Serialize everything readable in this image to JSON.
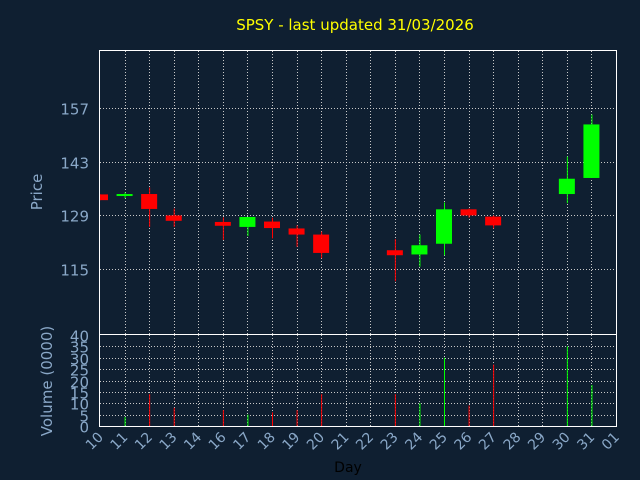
{
  "chart_data": {
    "type": "candlestick",
    "title": "SPSY - last updated 31/03/2026",
    "xlabel": "Day",
    "price_panel": {
      "ylabel": "Price",
      "ylim": [
        98,
        172
      ],
      "yticks": [
        115,
        129,
        143,
        157
      ],
      "grid": true
    },
    "volume_panel": {
      "ylabel": "Volume (0000)",
      "ylim": [
        0,
        40
      ],
      "yticks": [
        0,
        5,
        10,
        15,
        20,
        25,
        30,
        35,
        40
      ],
      "grid": true
    },
    "x_ticks": [
      "10",
      "11",
      "12",
      "13",
      "14",
      "16",
      "17",
      "18",
      "19",
      "20",
      "21",
      "22",
      "23",
      "24",
      "25",
      "26",
      "27",
      "28",
      "29",
      "30",
      "31",
      "01"
    ],
    "candles": [
      {
        "day": "10",
        "open": 134.5,
        "high": 134.5,
        "low": 133.0,
        "close": 133.0,
        "volume": 0
      },
      {
        "day": "11",
        "open": 134.4,
        "high": 135.0,
        "low": 133.5,
        "close": 134.6,
        "volume": 4
      },
      {
        "day": "12",
        "open": 134.6,
        "high": 136.3,
        "low": 126.0,
        "close": 130.7,
        "volume": 14
      },
      {
        "day": "13",
        "open": 129.0,
        "high": 130.8,
        "low": 126.0,
        "close": 127.6,
        "volume": 8
      },
      {
        "day": "16",
        "open": 127.3,
        "high": 128.5,
        "low": 122.6,
        "close": 126.3,
        "volume": 7
      },
      {
        "day": "17",
        "open": 126.0,
        "high": 128.6,
        "low": 123.6,
        "close": 128.6,
        "volume": 5
      },
      {
        "day": "18",
        "open": 127.4,
        "high": 128.4,
        "low": 123.0,
        "close": 125.7,
        "volume": 6
      },
      {
        "day": "19",
        "open": 125.6,
        "high": 126.4,
        "low": 120.8,
        "close": 124.0,
        "volume": 7
      },
      {
        "day": "20",
        "open": 124.0,
        "high": 124.8,
        "low": 117.8,
        "close": 119.2,
        "volume": 14
      },
      {
        "day": "23",
        "open": 119.9,
        "high": 122.8,
        "low": 111.8,
        "close": 118.6,
        "volume": 14
      },
      {
        "day": "24",
        "open": 118.8,
        "high": 124.0,
        "low": 115.6,
        "close": 121.2,
        "volume": 10
      },
      {
        "day": "25",
        "open": 121.6,
        "high": 132.4,
        "low": 118.6,
        "close": 130.6,
        "volume": 30
      },
      {
        "day": "26",
        "open": 130.6,
        "high": 130.8,
        "low": 128.4,
        "close": 129.0,
        "volume": 9
      },
      {
        "day": "27",
        "open": 128.7,
        "high": 129.0,
        "low": 125.6,
        "close": 126.4,
        "volume": 27
      },
      {
        "day": "30",
        "open": 134.6,
        "high": 144.4,
        "low": 132.2,
        "close": 138.6,
        "volume": 35
      },
      {
        "day": "31",
        "open": 138.8,
        "high": 155.4,
        "low": 138.8,
        "close": 152.8,
        "volume": 18
      }
    ],
    "colors": {
      "background": "#0f1f31",
      "panel_border": "#ffffff",
      "grid": "#c8c8c8",
      "title": "#ffff00",
      "axis_text": "#8aa8c8",
      "up": "#00ff00",
      "down": "#ff0000"
    }
  }
}
